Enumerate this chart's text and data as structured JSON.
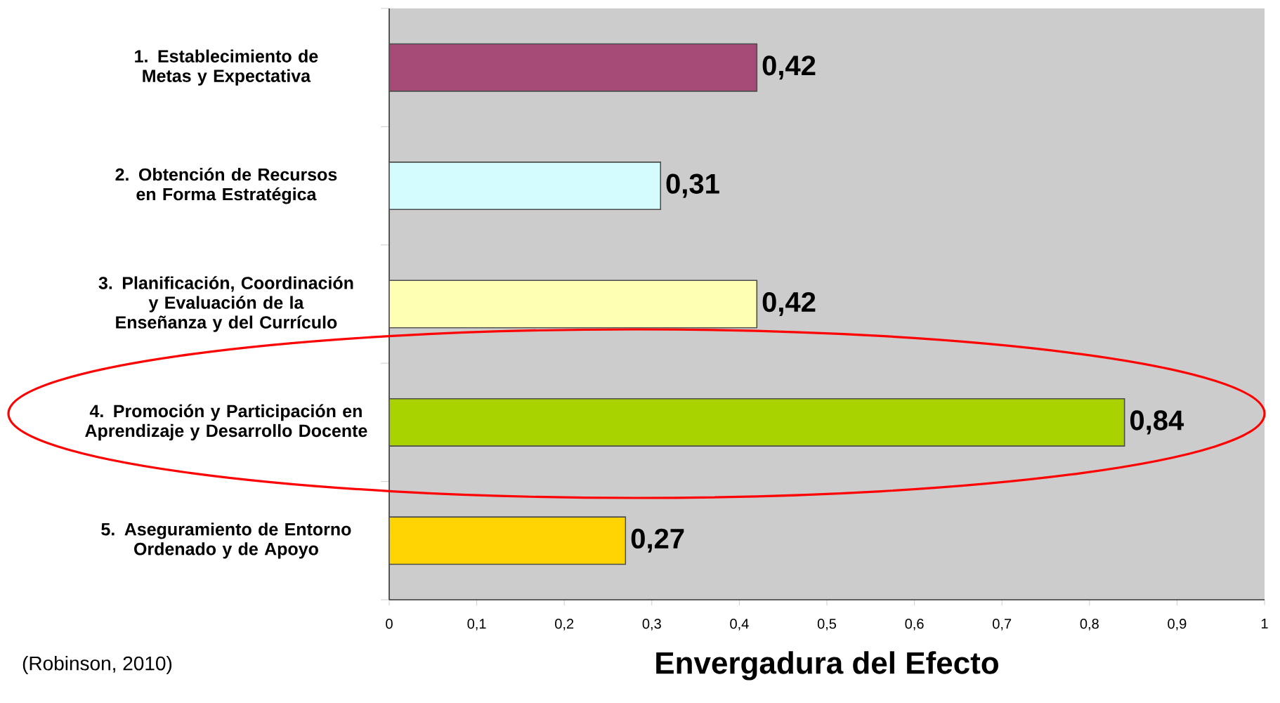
{
  "chart_data": {
    "type": "bar",
    "orientation": "horizontal",
    "categories": [
      "1. Establecimiento de Metas y Expectativa",
      "2. Obtención de Recursos en Forma Estratégica",
      "3. Planificación, Coordinación y Evaluación de la Enseñanza y del Currículo",
      "4. Promoción y Participación en Aprendizaje y Desarrollo Docente",
      "5. Aseguramiento de Entorno Ordenado y de Apoyo"
    ],
    "values": [
      0.42,
      0.31,
      0.42,
      0.84,
      0.27
    ],
    "colors": [
      "#a64a78",
      "#d4fbfd",
      "#ffffb3",
      "#a8d300",
      "#ffd400"
    ],
    "value_labels": [
      "0,42",
      "0,31",
      "0,42",
      "0,84",
      "0,27"
    ],
    "xlim": [
      0,
      1
    ],
    "xticks": [
      0,
      {
        "value": 0.1,
        "label": "0,1"
      },
      {
        "value": 0.2,
        "label": "0,2"
      },
      {
        "value": 0.3,
        "label": "0,3"
      },
      {
        "value": 0.4,
        "label": "0,4"
      },
      {
        "value": 0.5,
        "label": "0,5"
      },
      {
        "value": 0.6,
        "label": "0,6"
      },
      {
        "value": 0.7,
        "label": "0,7"
      },
      {
        "value": 0.8,
        "label": "0,8"
      },
      {
        "value": 0.9,
        "label": "0,9"
      },
      1
    ],
    "xlabel": "Envergadura del Efecto",
    "annotations": [
      "(Robinson, 2010)"
    ]
  }
}
